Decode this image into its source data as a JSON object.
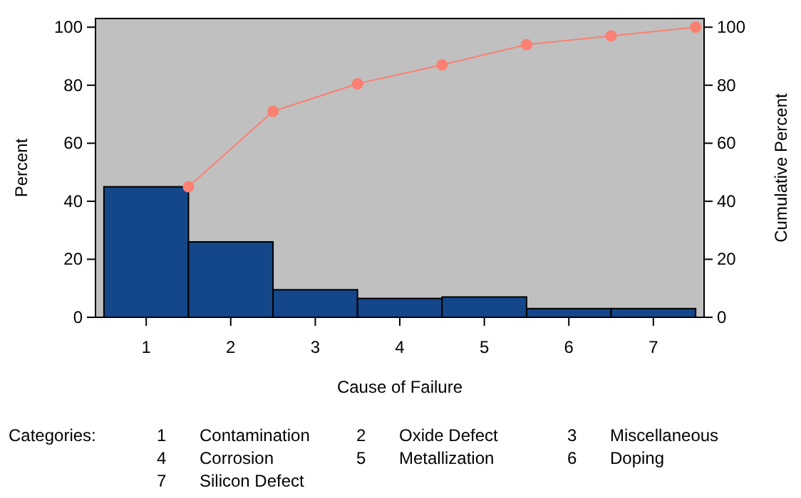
{
  "chart_data": {
    "type": "bar",
    "xlabel": "Cause of Failure",
    "ylabel": "Percent",
    "y2label": "Cumulative Percent",
    "x": [
      1,
      2,
      3,
      4,
      5,
      6,
      7
    ],
    "series": [
      {
        "color": "#14468a",
        "values": [
          45,
          26,
          9.5,
          6.5,
          7,
          3,
          3
        ]
      },
      {
        "type": "line",
        "axis": "y2",
        "color": "#fa8072",
        "marker": "circle",
        "x": [
          1.5,
          2.5,
          3.5,
          4.5,
          5.5,
          6.5,
          7.5
        ],
        "values": [
          45,
          71,
          80.5,
          87,
          94,
          97,
          100
        ]
      }
    ],
    "xlim": [
      0.4,
      7.6
    ],
    "xticks": [
      1,
      2,
      3,
      4,
      5,
      6,
      7
    ],
    "ylim": [
      0,
      103
    ],
    "yticks": [
      0,
      20,
      40,
      60,
      80,
      100
    ],
    "y2lim": [
      0,
      103
    ],
    "y2ticks": [
      0,
      20,
      40,
      60,
      80,
      100
    ],
    "grid": false,
    "annotations": [
      "Categories:",
      "1",
      "Contamination",
      "2",
      "Oxide Defect",
      "3",
      "Miscellaneous",
      "4",
      "Corrosion",
      "5",
      "Metallization",
      "6",
      "Doping",
      "7",
      "Silicon Defect"
    ]
  }
}
